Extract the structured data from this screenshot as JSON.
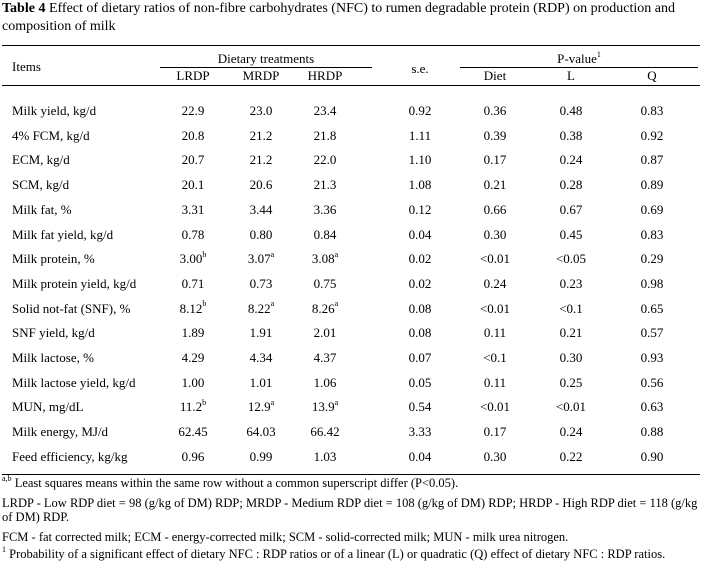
{
  "caption": {
    "label": "Table 4",
    "text": " Effect of dietary ratios of non-fibre carbohydrates (NFC) to rumen degradable protein (RDP) on production and composition of milk"
  },
  "header": {
    "items": "Items",
    "group_treatments": "Dietary treatments",
    "group_pvalue": "P-value",
    "group_pvalue_sup": "1",
    "lrdp": "LRDP",
    "mrdp": "MRDP",
    "hrdp": "HRDP",
    "se": "s.e.",
    "diet": "Diet",
    "l": "L",
    "q": "Q"
  },
  "rows": [
    {
      "item": "Milk yield, kg/d",
      "lrdp": "22.9",
      "mrdp": "23.0",
      "hrdp": "23.4",
      "se": "0.92",
      "diet": "0.36",
      "l": "0.48",
      "q": "0.83"
    },
    {
      "item": "4% FCM, kg/d",
      "lrdp": "20.8",
      "mrdp": "21.2",
      "hrdp": "21.8",
      "se": "1.11",
      "diet": "0.39",
      "l": "0.38",
      "q": "0.92"
    },
    {
      "item": "ECM, kg/d",
      "lrdp": "20.7",
      "mrdp": "21.2",
      "hrdp": "22.0",
      "se": "1.10",
      "diet": "0.17",
      "l": "0.24",
      "q": "0.87"
    },
    {
      "item": "SCM, kg/d",
      "lrdp": "20.1",
      "mrdp": "20.6",
      "hrdp": "21.3",
      "se": "1.08",
      "diet": "0.21",
      "l": "0.28",
      "q": "0.89"
    },
    {
      "item": "Milk fat, %",
      "lrdp": "3.31",
      "mrdp": "3.44",
      "hrdp": "3.36",
      "se": "0.12",
      "diet": "0.66",
      "l": "0.67",
      "q": "0.69"
    },
    {
      "item": "Milk fat yield, kg/d",
      "lrdp": "0.78",
      "mrdp": "0.80",
      "hrdp": "0.84",
      "se": "0.04",
      "diet": "0.30",
      "l": "0.45",
      "q": "0.83"
    },
    {
      "item": "Milk protein, %",
      "lrdp": "3.00",
      "lrdp_sup": "b",
      "mrdp": "3.07",
      "mrdp_sup": "a",
      "hrdp": "3.08",
      "hrdp_sup": "a",
      "se": "0.02",
      "diet": "<0.01",
      "l": "<0.05",
      "q": "0.29"
    },
    {
      "item": "Milk protein yield, kg/d",
      "lrdp": "0.71",
      "mrdp": "0.73",
      "hrdp": "0.75",
      "se": "0.02",
      "diet": "0.24",
      "l": "0.23",
      "q": "0.98"
    },
    {
      "item": "Solid not-fat (SNF), %",
      "lrdp": "8.12",
      "lrdp_sup": "b",
      "mrdp": "8.22",
      "mrdp_sup": "a",
      "hrdp": "8.26",
      "hrdp_sup": "a",
      "se": "0.08",
      "diet": "<0.01",
      "l": "<0.1",
      "q": "0.65"
    },
    {
      "item": "SNF yield, kg/d",
      "lrdp": "1.89",
      "mrdp": "1.91",
      "hrdp": "2.01",
      "se": "0.08",
      "diet": "0.11",
      "l": "0.21",
      "q": "0.57"
    },
    {
      "item": "Milk lactose, %",
      "lrdp": "4.29",
      "mrdp": "4.34",
      "hrdp": "4.37",
      "se": "0.07",
      "diet": "<0.1",
      "l": "0.30",
      "q": "0.93"
    },
    {
      "item": "Milk lactose yield, kg/d",
      "lrdp": "1.00",
      "mrdp": "1.01",
      "hrdp": "1.06",
      "se": "0.05",
      "diet": "0.11",
      "l": "0.25",
      "q": "0.56"
    },
    {
      "item": "MUN, mg/dL",
      "lrdp": "11.2",
      "lrdp_sup": "b",
      "mrdp": "12.9",
      "mrdp_sup": "a",
      "hrdp": "13.9",
      "hrdp_sup": "a",
      "se": "0.54",
      "diet": "<0.01",
      "l": "<0.01",
      "q": "0.63"
    },
    {
      "item": "Milk energy, MJ/d",
      "lrdp": "62.45",
      "mrdp": "64.03",
      "hrdp": "66.42",
      "se": "3.33",
      "diet": "0.17",
      "l": "0.24",
      "q": "0.88"
    },
    {
      "item": "Feed efficiency, kg/kg",
      "lrdp": "0.96",
      "mrdp": "0.99",
      "hrdp": "1.03",
      "se": "0.04",
      "diet": "0.30",
      "l": "0.22",
      "q": "0.90"
    }
  ],
  "footnotes": {
    "f1_sup": "a,b",
    "f1": " Least squares means within the same row without a common superscript differ (P<0.05).",
    "f2": "LRDP - Low RDP diet = 98 (g/kg of DM) RDP; MRDP - Medium RDP diet = 108 (g/kg of DM) RDP; HRDP - High RDP diet = 118 (g/kg of DM) RDP.",
    "f3": "FCM - fat corrected milk; ECM - energy-corrected milk; SCM - solid-corrected milk; MUN - milk urea nitrogen.",
    "f4_sup": "1",
    "f4": " Probability of a significant effect of dietary NFC : RDP ratios or of a linear (L) or quadratic (Q) effect of dietary NFC : RDP ratios."
  }
}
